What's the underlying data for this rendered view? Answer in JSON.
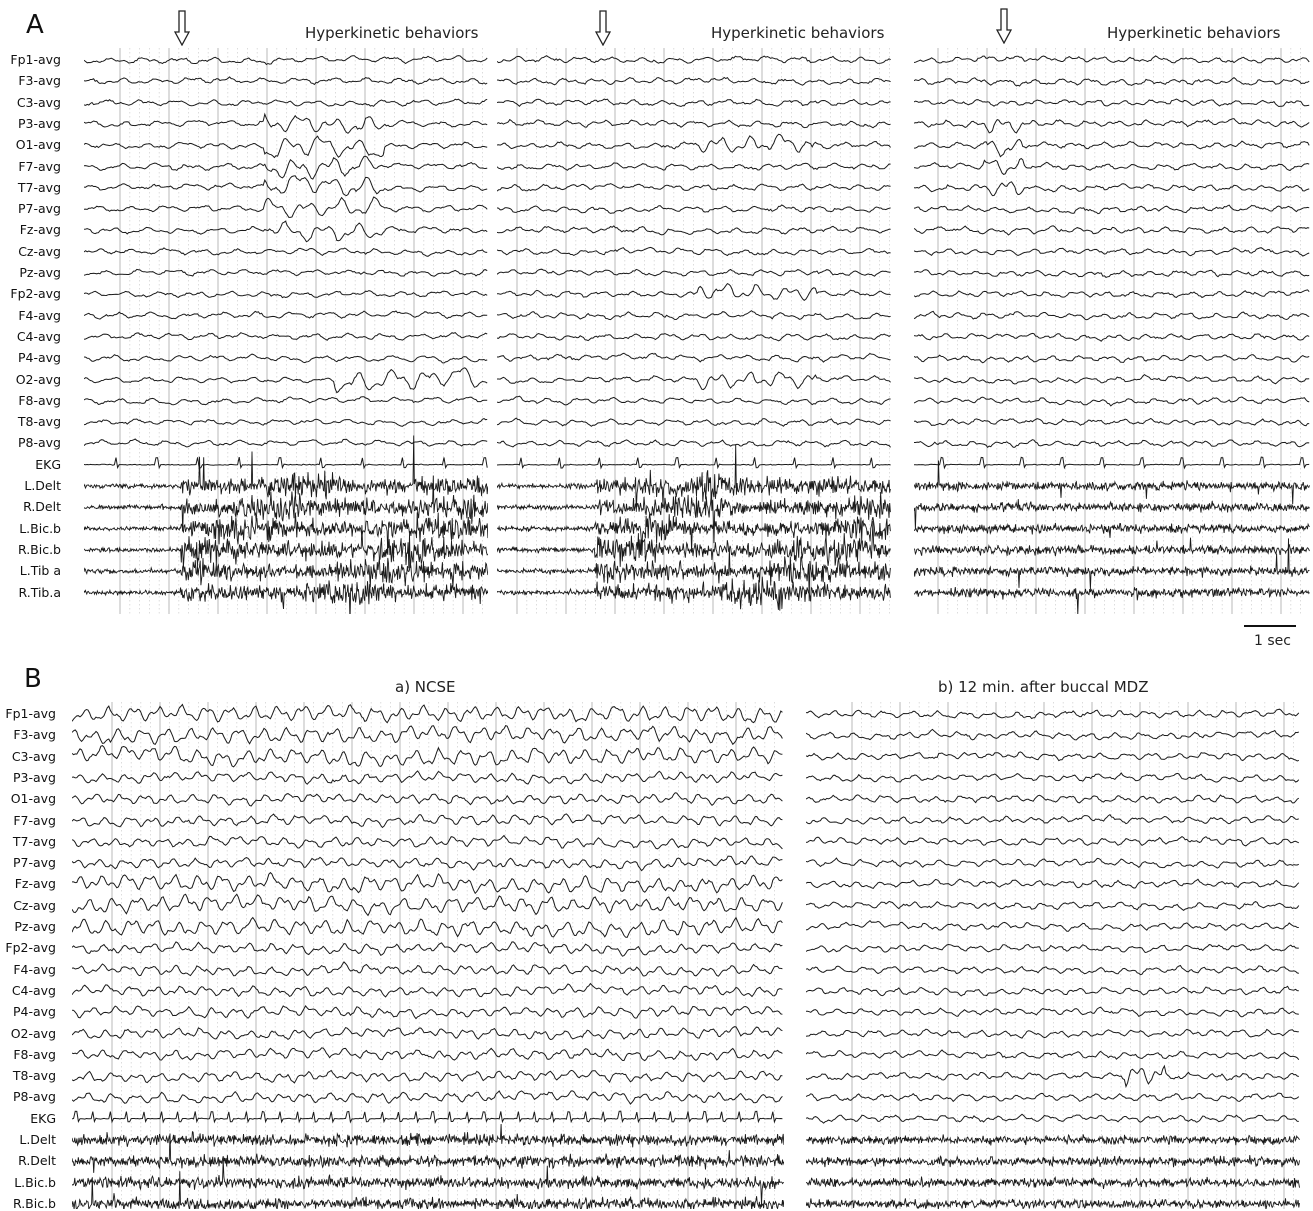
{
  "figure": {
    "panelA": {
      "letter": "A",
      "annotations": [
        "Hyperkinetic behaviors",
        "Hyperkinetic behaviors",
        "Hyperkinetic behaviors"
      ],
      "channels": [
        "Fp1-avg",
        "F3-avg",
        "C3-avg",
        "P3-avg",
        "O1-avg",
        "F7-avg",
        "T7-avg",
        "P7-avg",
        "Fz-avg",
        "Cz-avg",
        "Pz-avg",
        "Fp2-avg",
        "F4-avg",
        "C4-avg",
        "P4-avg",
        "O2-avg",
        "F8-avg",
        "T8-avg",
        "P8-avg",
        "EKG",
        "L.Delt",
        "R.Delt",
        "L.Bic.b",
        "R.Bic.b",
        "L.Tib a",
        "R.Tib.a"
      ],
      "arrow_icon": "down-arrow-icon",
      "scale": "1 sec"
    },
    "panelB": {
      "letter": "B",
      "title_left": "a) NCSE",
      "title_right": "b) 12 min. after buccal MDZ",
      "channels": [
        "Fp1-avg",
        "F3-avg",
        "C3-avg",
        "P3-avg",
        "O1-avg",
        "F7-avg",
        "T7-avg",
        "P7-avg",
        "Fz-avg",
        "Cz-avg",
        "Pz-avg",
        "Fp2-avg",
        "F4-avg",
        "C4-avg",
        "P4-avg",
        "O2-avg",
        "F8-avg",
        "T8-avg",
        "P8-avg",
        "EKG",
        "L.Delt",
        "R.Delt",
        "L.Bic.b",
        "R.Bic.b"
      ]
    },
    "colors": {
      "trace": "#1a1a1a",
      "grid": "#b8b8b8",
      "grid_dotted": "#d4d4d4"
    }
  }
}
